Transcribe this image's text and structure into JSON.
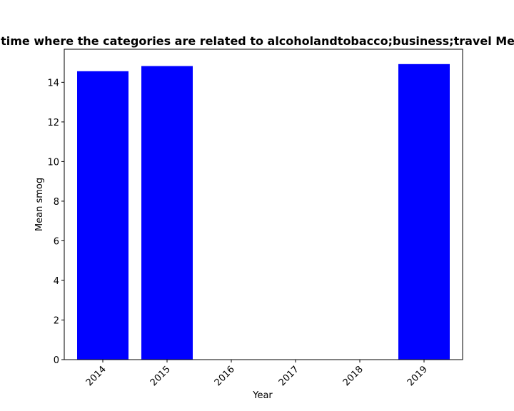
{
  "chart_data": {
    "type": "bar",
    "title": "Mean smog in privacy policies over time where the categories are related to alcoholandtobacco;business;travel Mean smog in privacy policies over time",
    "xlabel": "Year",
    "ylabel": "Mean smog",
    "categories": [
      "2014",
      "2015",
      "2016",
      "2017",
      "2018",
      "2019"
    ],
    "values": [
      14.56,
      14.82,
      0,
      0,
      0,
      14.92
    ],
    "ylim": [
      0,
      15.67
    ],
    "yticks": [
      0,
      2,
      4,
      6,
      8,
      10,
      12,
      14
    ],
    "bar_color": "#0000ff",
    "grid": false,
    "legend": "none"
  }
}
